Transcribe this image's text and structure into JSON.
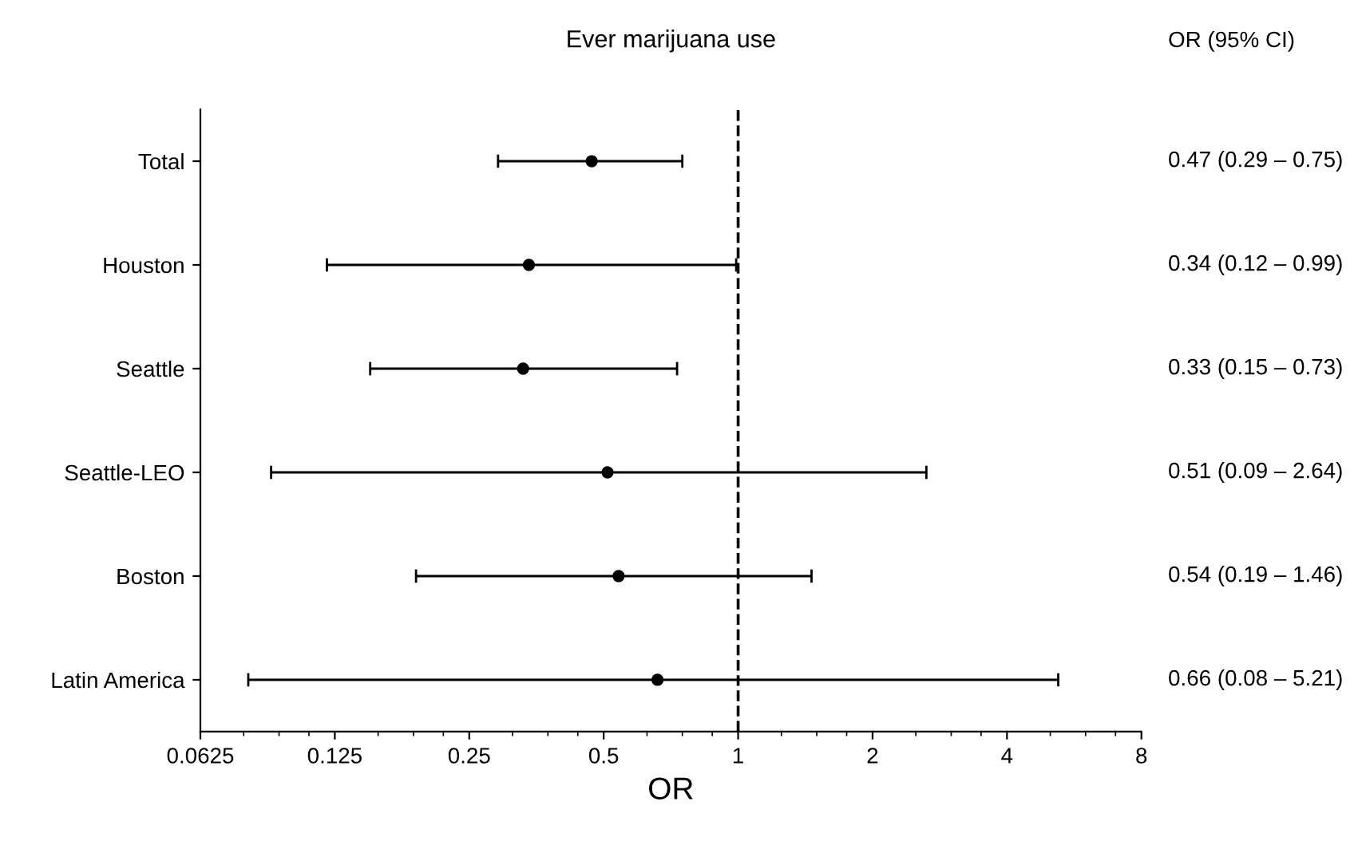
{
  "chart_data": {
    "type": "scatter",
    "orientation": "horizontal",
    "title": "Ever marijuana use",
    "xlabel": "OR",
    "categories": [
      "Total",
      "Houston",
      "Seattle",
      "Seattle-LEO",
      "Boston",
      "Latin America"
    ],
    "values": [
      0.47,
      0.34,
      0.33,
      0.51,
      0.54,
      0.66
    ],
    "errors": [
      [
        0.29,
        0.75
      ],
      [
        0.12,
        0.99
      ],
      [
        0.15,
        0.73
      ],
      [
        0.09,
        2.64
      ],
      [
        0.19,
        1.46
      ],
      [
        0.08,
        5.21
      ]
    ],
    "value_labels": [
      "0.47 (0.29 – 0.75)",
      "0.34 (0.12 – 0.99)",
      "0.33 (0.15 – 0.73)",
      "0.51 (0.09 – 2.64)",
      "0.54 (0.19 – 1.46)",
      "0.66 (0.08 – 5.21)"
    ],
    "annotations": [
      "OR (95% CI)"
    ],
    "color": "#000000",
    "marker": "circle",
    "log": "x",
    "xlim": [
      0.0625,
      8
    ],
    "xticks": [
      0.0625,
      0.125,
      0.25,
      0.5,
      1,
      2,
      4,
      8
    ],
    "ref_lines": [
      {
        "axis": "x",
        "value": 1,
        "line_style": "dashed",
        "color": "#000000"
      }
    ],
    "grid": false,
    "legend": false
  }
}
